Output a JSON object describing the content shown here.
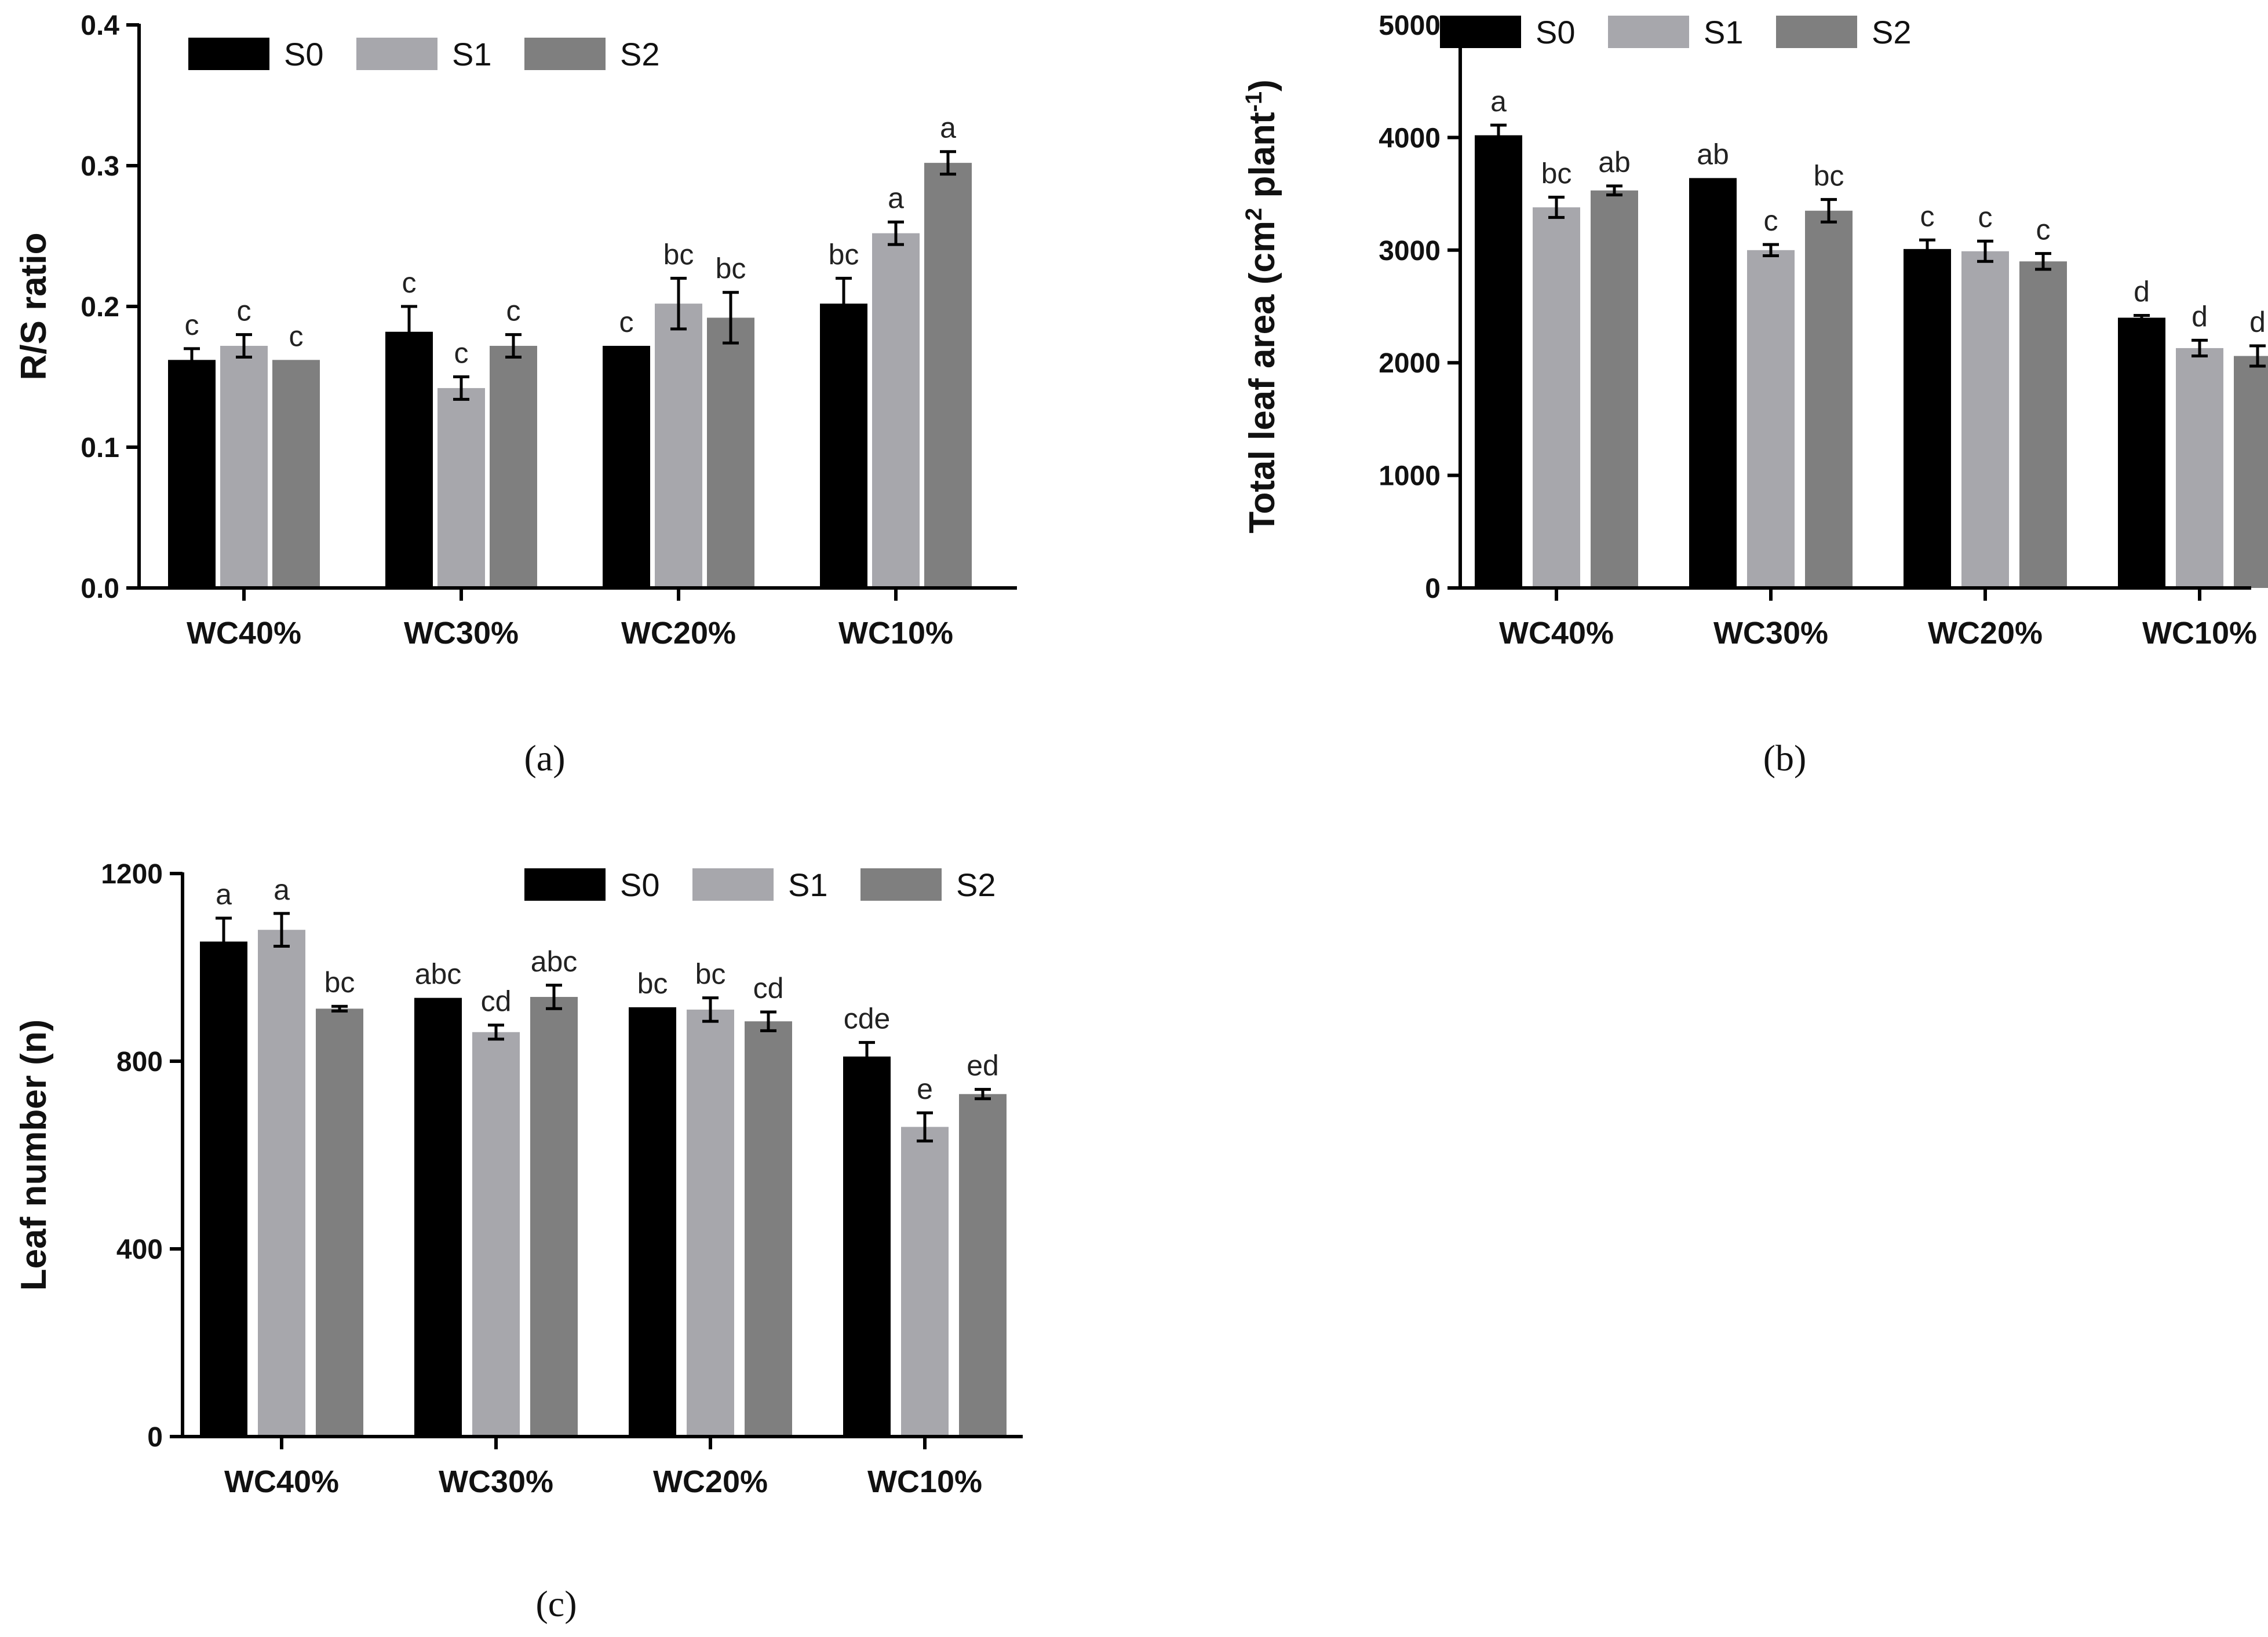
{
  "chart_data": [
    {
      "type": "bar",
      "panel_label": "(a)",
      "ylabel": "R/S ratio",
      "ylabel_parts": [
        "R/S ratio"
      ],
      "ylim": [
        0,
        0.4
      ],
      "yticks": [
        0,
        0.1,
        0.2,
        0.3,
        0.4
      ],
      "ytick_labels": [
        "0.0",
        "0.1",
        "0.2",
        "0.3",
        "0.4"
      ],
      "legend_position": "top-left",
      "categories": [
        "WC40%",
        "WC30%",
        "WC20%",
        "WC10%"
      ],
      "series": [
        {
          "name": "S0",
          "color": "#000000",
          "values": [
            0.162,
            0.182,
            0.172,
            0.202
          ],
          "errors": [
            0.008,
            0.018,
            0,
            0.018
          ],
          "letters": [
            "c",
            "c",
            "c",
            "bc"
          ]
        },
        {
          "name": "S1",
          "color": "#a7a7ac",
          "values": [
            0.172,
            0.142,
            0.202,
            0.252
          ],
          "errors": [
            0.008,
            0.008,
            0.018,
            0.008
          ],
          "letters": [
            "c",
            "c",
            "bc",
            "a"
          ]
        },
        {
          "name": "S2",
          "color": "#7f7f7f",
          "values": [
            0.162,
            0.172,
            0.192,
            0.302
          ],
          "errors": [
            0,
            0.008,
            0.018,
            0.008
          ],
          "letters": [
            "c",
            "c",
            "bc",
            "a"
          ]
        }
      ]
    },
    {
      "type": "bar",
      "panel_label": "(b)",
      "ylabel": "Total leaf area (cm2 plant-1)",
      "ylabel_parts": [
        "Total leaf area (cm",
        "2",
        " plant",
        "-1",
        ")"
      ],
      "ylim": [
        0,
        5000
      ],
      "yticks": [
        0,
        1000,
        2000,
        3000,
        4000,
        5000
      ],
      "ytick_labels": [
        "0",
        "1000",
        "2000",
        "3000",
        "4000",
        "5000"
      ],
      "legend_position": "top-left",
      "categories": [
        "WC40%",
        "WC30%",
        "WC20%",
        "WC10%"
      ],
      "series": [
        {
          "name": "S0",
          "color": "#000000",
          "values": [
            4020,
            3640,
            3010,
            2400
          ],
          "errors": [
            90,
            0,
            80,
            20
          ],
          "letters": [
            "a",
            "ab",
            "c",
            "d"
          ]
        },
        {
          "name": "S1",
          "color": "#a7a7ac",
          "values": [
            3380,
            3000,
            2990,
            2130
          ],
          "errors": [
            90,
            50,
            90,
            70
          ],
          "letters": [
            "bc",
            "c",
            "c",
            "d"
          ]
        },
        {
          "name": "S2",
          "color": "#7f7f7f",
          "values": [
            3530,
            3350,
            2900,
            2060
          ],
          "errors": [
            40,
            100,
            70,
            90
          ],
          "letters": [
            "ab",
            "bc",
            "c",
            "d"
          ]
        }
      ]
    },
    {
      "type": "bar",
      "panel_label": "(c)",
      "ylabel": "Leaf number (n)",
      "ylabel_parts": [
        "Leaf number (n)"
      ],
      "ylim": [
        0,
        1200
      ],
      "yticks": [
        0,
        400,
        800,
        1200
      ],
      "ytick_labels": [
        "0",
        "400",
        "800",
        "1200"
      ],
      "legend_position": "top-right",
      "categories": [
        "WC40%",
        "WC30%",
        "WC20%",
        "WC10%"
      ],
      "series": [
        {
          "name": "S0",
          "color": "#000000",
          "values": [
            1055,
            935,
            915,
            810
          ],
          "errors": [
            50,
            0,
            0,
            30
          ],
          "letters": [
            "a",
            "abc",
            "bc",
            "cde"
          ]
        },
        {
          "name": "S1",
          "color": "#a7a7ac",
          "values": [
            1080,
            862,
            910,
            660
          ],
          "errors": [
            35,
            15,
            25,
            30
          ],
          "letters": [
            "a",
            "cd",
            "bc",
            "e"
          ]
        },
        {
          "name": "S2",
          "color": "#7f7f7f",
          "values": [
            912,
            937,
            885,
            730
          ],
          "errors": [
            5,
            25,
            20,
            10
          ],
          "letters": [
            "bc",
            "abc",
            "cd",
            "ed"
          ]
        }
      ]
    }
  ]
}
